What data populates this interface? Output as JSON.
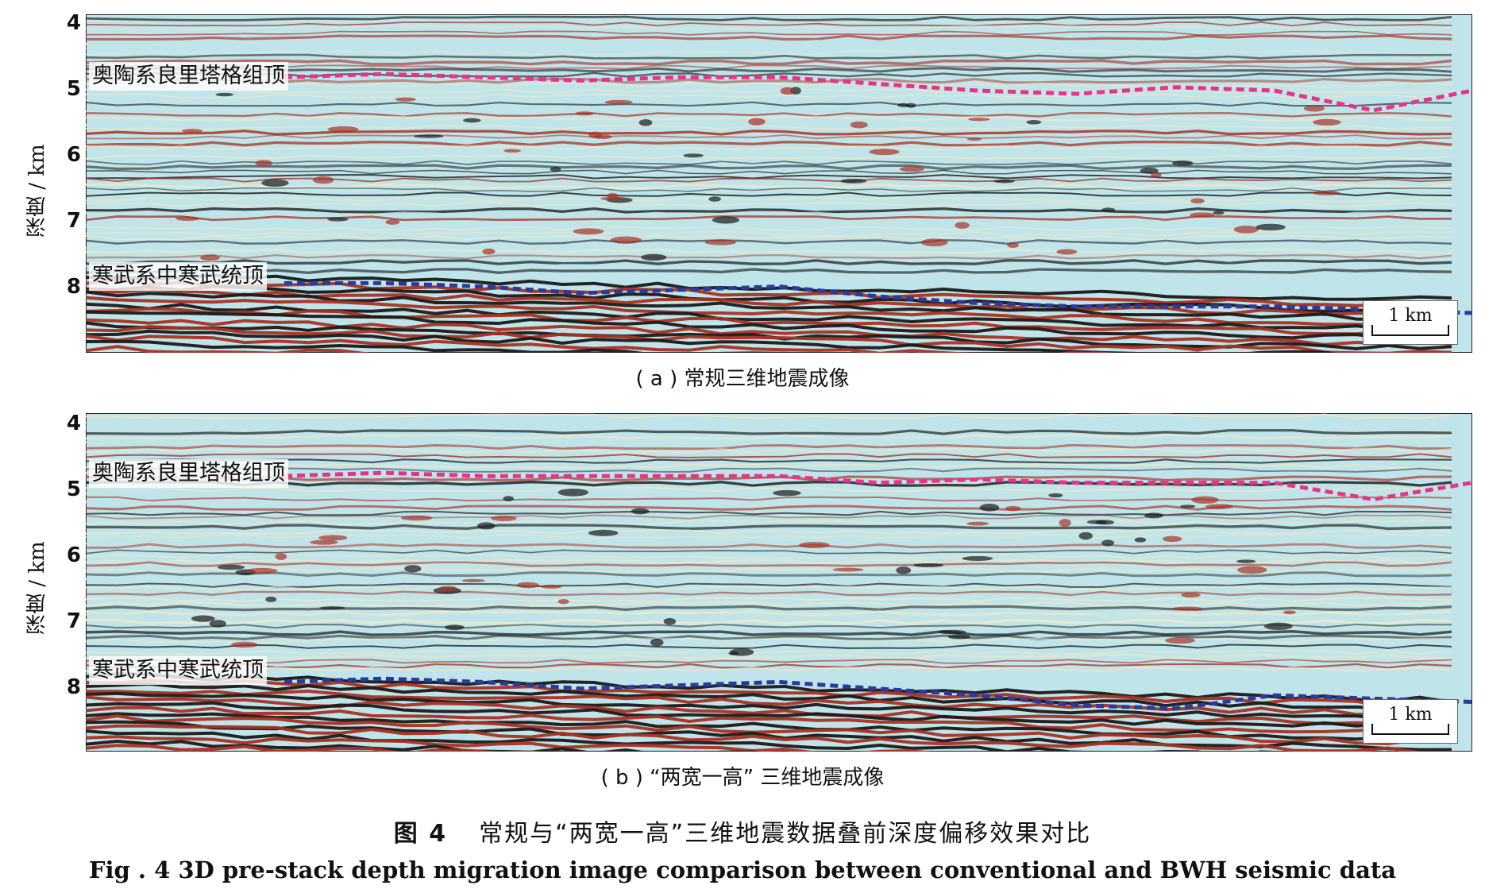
{
  "figure": {
    "title_zh_num": "图 4",
    "title_zh": "常规与“两宽一高”三维地震数据叠前深度偏移效果对比",
    "title_en": "Fig . 4    3D pre-stack depth migration image comparison between conventional and BWH seismic data"
  },
  "panels": [
    {
      "id": "a",
      "caption": "( a ) 常规三维地震成像",
      "ylabel": "深度 / km",
      "yticks": [
        "4",
        "5",
        "6",
        "7",
        "8"
      ],
      "horizon_top_label": "奥陶系良里塔格组顶",
      "horizon_bottom_label": "寒武系中寒武统顶",
      "scale_label": "1 km"
    },
    {
      "id": "b",
      "caption": "( b ) “两宽一高” 三维地震成像",
      "ylabel": "深度 / km",
      "yticks": [
        "4",
        "5",
        "6",
        "7",
        "8"
      ],
      "horizon_top_label": "奥陶系良里塔格组顶",
      "horizon_bottom_label": "寒武系中寒武统顶",
      "scale_label": "1 km"
    }
  ],
  "colors": {
    "top_horizon": "#e8338a",
    "bottom_horizon": "#2b3a9e",
    "seismic_red": "#a83222",
    "seismic_black": "#1a1a1a",
    "seismic_cyan": "#bfe4ea",
    "seismic_cream": "#efe8c8"
  },
  "chart_data": [
    {
      "type": "other",
      "panel": "a",
      "ylabel": "深度 / km",
      "ylim": [
        4,
        9
      ],
      "yticks": [
        4,
        5,
        6,
        7,
        8
      ],
      "horizons": [
        {
          "name": "奥陶系良里塔格组顶",
          "depth_km_profile": [
            4.9,
            4.85,
            4.9,
            4.95,
            4.9,
            4.9,
            5.0,
            5.1,
            5.15,
            5.05,
            5.1,
            5.4,
            5.1
          ]
        },
        {
          "name": "寒武系中寒武统顶",
          "depth_km_profile": [
            8.0,
            8.0,
            8.05,
            8.15,
            8.1,
            8.05,
            8.2,
            8.3,
            8.35,
            8.35,
            8.35,
            8.4,
            8.45
          ]
        }
      ]
    },
    {
      "type": "other",
      "panel": "b",
      "ylabel": "深度 / km",
      "ylim": [
        4,
        9
      ],
      "yticks": [
        4,
        5,
        6,
        7,
        8
      ],
      "horizons": [
        {
          "name": "奥陶系良里塔格组顶",
          "depth_km_profile": [
            4.9,
            4.85,
            4.9,
            4.9,
            4.9,
            4.9,
            5.0,
            4.95,
            5.0,
            5.0,
            5.0,
            5.25,
            5.0
          ]
        },
        {
          "name": "寒武系中寒武统顶",
          "depth_km_profile": [
            8.0,
            7.95,
            8.0,
            8.1,
            8.05,
            8.0,
            8.1,
            8.2,
            8.35,
            8.4,
            8.2,
            8.25,
            8.3
          ]
        }
      ]
    }
  ]
}
